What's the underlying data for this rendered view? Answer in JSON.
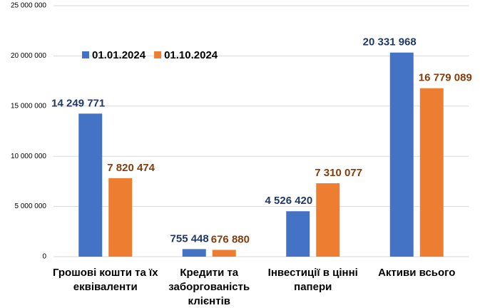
{
  "chart_data": {
    "type": "bar",
    "categories": [
      "Грошові кошти та їх еквіваленти",
      "Кредити та заборгованість клієнтів",
      "Інвестиції в цінні папери",
      "Активи всього"
    ],
    "series": [
      {
        "name": "01.01.2024",
        "color": "#4472c4",
        "label_color": "#203864",
        "values": [
          14249771,
          755448,
          4526420,
          20331968
        ],
        "value_labels": [
          "14 249 771",
          "755 448",
          "4 526 420",
          "20 331 968"
        ]
      },
      {
        "name": "01.10.2024",
        "color": "#ed7d31",
        "label_color": "#843c0c",
        "values": [
          7820474,
          676880,
          7310077,
          16779089
        ],
        "value_labels": [
          "7 820 474",
          "676 880",
          "7 310 077",
          "16 779 089"
        ]
      }
    ],
    "ylim": [
      0,
      25000000
    ],
    "yticks": [
      {
        "value": 0,
        "label": "0"
      },
      {
        "value": 5000000,
        "label": "5 000 000"
      },
      {
        "value": 10000000,
        "label": "10 000 000"
      },
      {
        "value": 15000000,
        "label": "15 000 000"
      },
      {
        "value": 20000000,
        "label": "20 000 000"
      },
      {
        "value": 25000000,
        "label": "25 000 000"
      }
    ],
    "grid": true,
    "legend": "top-left"
  }
}
